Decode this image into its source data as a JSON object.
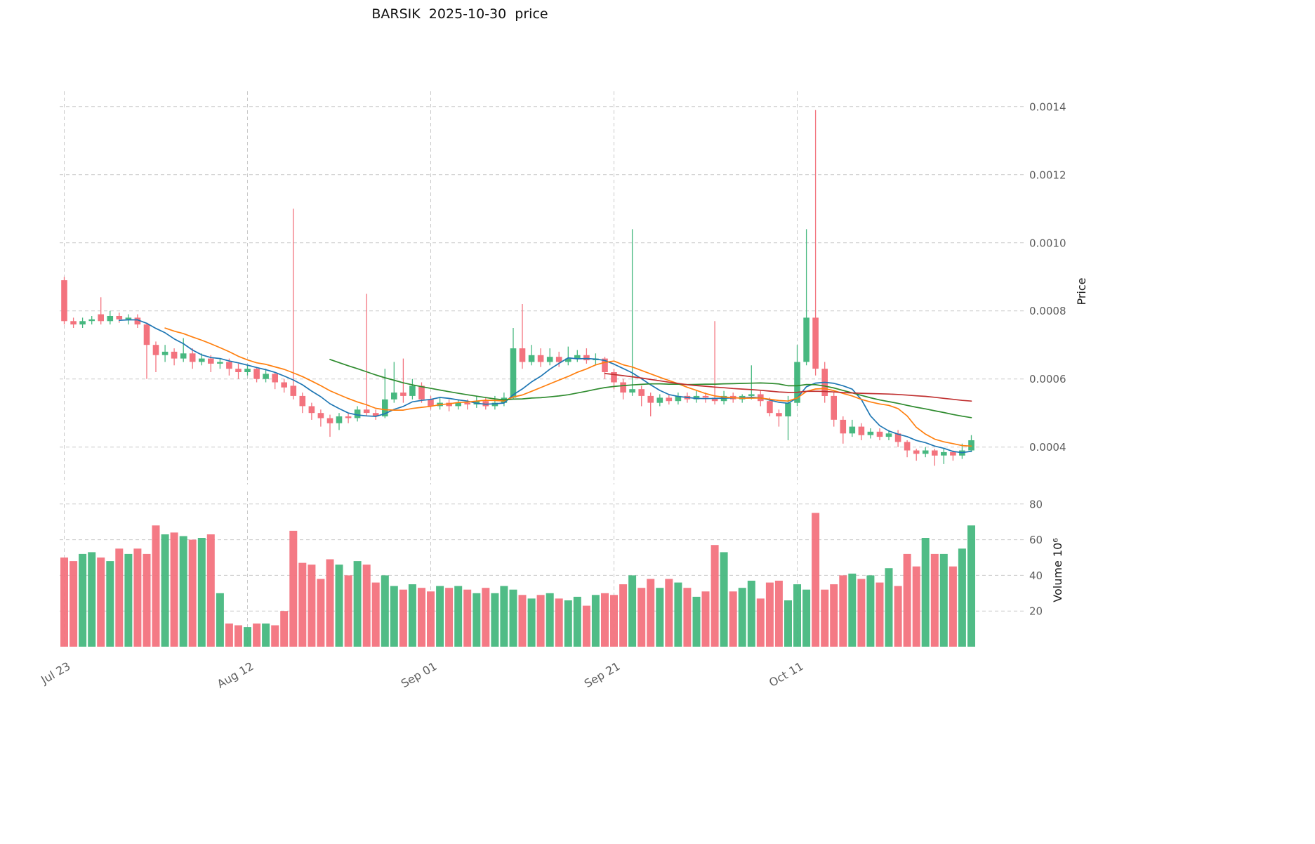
{
  "title": "BARSIK  2025-10-30  price",
  "chart_data": {
    "type": "candlestick",
    "title": "BARSIK  2025-10-30  price",
    "symbol": "BARSIK",
    "as_of_date": "2025-10-30",
    "grid": true,
    "legend": "none",
    "price_axis": {
      "label": "Price",
      "side": "right",
      "ticks": [
        0.0004,
        0.0006,
        0.0008,
        0.001,
        0.0012,
        0.0014
      ],
      "tick_labels": [
        "0.0004",
        "0.0006",
        "0.0008",
        "0.0010",
        "0.0012",
        "0.0014"
      ],
      "range": [
        0.00029,
        0.001445
      ]
    },
    "volume_axis": {
      "label": "Volume 10⁶",
      "side": "right",
      "unit": "millions",
      "ticks": [
        20,
        40,
        60,
        80
      ],
      "tick_labels": [
        "20",
        "40",
        "60",
        "80"
      ],
      "range": [
        0,
        87
      ]
    },
    "x_axis": {
      "tick_labels": [
        "Jul 23",
        "Aug 12",
        "Sep 01",
        "Sep 21",
        "Oct 11"
      ],
      "tick_indices": [
        0,
        20,
        40,
        60,
        80
      ],
      "tick_dates": [
        "2025-07-23",
        "2025-08-12",
        "2025-09-01",
        "2025-09-21",
        "2025-10-11"
      ]
    },
    "colors": {
      "up": "#47b880",
      "down": "#f3737e",
      "grid": "#c9c9c9"
    },
    "moving_averages": [
      {
        "name": "MA7",
        "window": 7,
        "color": "#1f77b4"
      },
      {
        "name": "MA12",
        "window": 12,
        "color": "#ff7f0e"
      },
      {
        "name": "MA30",
        "window": 30,
        "color": "#2e8b2e"
      },
      {
        "name": "MA60",
        "window": 60,
        "color": "#c03030"
      }
    ],
    "candles": {
      "columns": [
        "date",
        "open",
        "high",
        "low",
        "close",
        "volume_millions"
      ],
      "rows": [
        [
          "2025-07-23",
          0.00089,
          0.0009,
          0.00076,
          0.00077,
          50
        ],
        [
          "2025-07-24",
          0.00077,
          0.00078,
          0.00075,
          0.00076,
          48
        ],
        [
          "2025-07-25",
          0.00076,
          0.00078,
          0.00075,
          0.00077,
          52
        ],
        [
          "2025-07-26",
          0.00077,
          0.000785,
          0.00076,
          0.000775,
          53
        ],
        [
          "2025-07-27",
          0.00079,
          0.00084,
          0.00076,
          0.00077,
          50
        ],
        [
          "2025-07-28",
          0.00077,
          0.0008,
          0.00076,
          0.000785,
          48
        ],
        [
          "2025-07-29",
          0.000785,
          0.000795,
          0.000765,
          0.000775,
          55
        ],
        [
          "2025-07-30",
          0.000775,
          0.00079,
          0.00076,
          0.00078,
          52
        ],
        [
          "2025-07-31",
          0.00078,
          0.00079,
          0.00075,
          0.00076,
          55
        ],
        [
          "2025-08-01",
          0.00076,
          0.000765,
          0.0006,
          0.0007,
          52
        ],
        [
          "2025-08-02",
          0.0007,
          0.00071,
          0.00062,
          0.00067,
          68
        ],
        [
          "2025-08-03",
          0.00067,
          0.0007,
          0.00065,
          0.00068,
          63
        ],
        [
          "2025-08-04",
          0.00068,
          0.00069,
          0.00064,
          0.00066,
          64
        ],
        [
          "2025-08-05",
          0.00066,
          0.00072,
          0.00065,
          0.000675,
          62
        ],
        [
          "2025-08-06",
          0.000675,
          0.00069,
          0.00063,
          0.00065,
          60
        ],
        [
          "2025-08-07",
          0.00065,
          0.000675,
          0.00064,
          0.00066,
          61
        ],
        [
          "2025-08-08",
          0.00066,
          0.00067,
          0.00062,
          0.000645,
          63
        ],
        [
          "2025-08-09",
          0.000645,
          0.00066,
          0.00063,
          0.00065,
          30
        ],
        [
          "2025-08-10",
          0.00065,
          0.00066,
          0.00061,
          0.00063,
          13
        ],
        [
          "2025-08-11",
          0.00063,
          0.000645,
          0.0006,
          0.00062,
          12
        ],
        [
          "2025-08-12",
          0.00062,
          0.00064,
          0.00061,
          0.00063,
          11
        ],
        [
          "2025-08-13",
          0.00063,
          0.000635,
          0.00059,
          0.0006,
          13
        ],
        [
          "2025-08-14",
          0.0006,
          0.00063,
          0.00059,
          0.000615,
          13
        ],
        [
          "2025-08-15",
          0.000615,
          0.00062,
          0.00057,
          0.00059,
          12
        ],
        [
          "2025-08-16",
          0.00059,
          0.0006,
          0.00056,
          0.000575,
          20
        ],
        [
          "2025-08-17",
          0.00058,
          0.0011,
          0.00054,
          0.00055,
          65
        ],
        [
          "2025-08-18",
          0.00055,
          0.00056,
          0.0005,
          0.00052,
          47
        ],
        [
          "2025-08-19",
          0.00052,
          0.00053,
          0.00048,
          0.0005,
          46
        ],
        [
          "2025-08-20",
          0.0005,
          0.00051,
          0.00046,
          0.000485,
          38
        ],
        [
          "2025-08-21",
          0.000485,
          0.000495,
          0.00043,
          0.00047,
          49
        ],
        [
          "2025-08-22",
          0.00047,
          0.0005,
          0.00045,
          0.00049,
          46
        ],
        [
          "2025-08-23",
          0.00049,
          0.0005,
          0.00047,
          0.000485,
          40
        ],
        [
          "2025-08-24",
          0.000485,
          0.00052,
          0.000475,
          0.00051,
          48
        ],
        [
          "2025-08-25",
          0.00051,
          0.00085,
          0.00049,
          0.0005,
          46
        ],
        [
          "2025-08-26",
          0.0005,
          0.00051,
          0.00048,
          0.00049,
          36
        ],
        [
          "2025-08-27",
          0.00049,
          0.00063,
          0.000485,
          0.00054,
          40
        ],
        [
          "2025-08-28",
          0.00054,
          0.00065,
          0.00053,
          0.00056,
          34
        ],
        [
          "2025-08-29",
          0.00056,
          0.00066,
          0.00053,
          0.00055,
          32
        ],
        [
          "2025-08-30",
          0.00055,
          0.0006,
          0.00054,
          0.00058,
          35
        ],
        [
          "2025-08-31",
          0.00058,
          0.00059,
          0.00053,
          0.00054,
          33
        ],
        [
          "2025-09-01",
          0.00054,
          0.00055,
          0.00051,
          0.00052,
          31
        ],
        [
          "2025-09-02",
          0.00052,
          0.000545,
          0.00051,
          0.00053,
          34
        ],
        [
          "2025-09-03",
          0.00053,
          0.00054,
          0.000505,
          0.00052,
          33
        ],
        [
          "2025-09-04",
          0.00052,
          0.00054,
          0.00051,
          0.00053,
          34
        ],
        [
          "2025-09-05",
          0.00053,
          0.00054,
          0.00051,
          0.000525,
          32
        ],
        [
          "2025-09-06",
          0.000525,
          0.00055,
          0.000515,
          0.000535,
          30
        ],
        [
          "2025-09-07",
          0.000535,
          0.000545,
          0.00051,
          0.00052,
          33
        ],
        [
          "2025-09-08",
          0.00052,
          0.00055,
          0.00051,
          0.00053,
          30
        ],
        [
          "2025-09-09",
          0.00053,
          0.00056,
          0.00052,
          0.000545,
          34
        ],
        [
          "2025-09-10",
          0.000545,
          0.00075,
          0.00054,
          0.00069,
          32
        ],
        [
          "2025-09-11",
          0.00069,
          0.00082,
          0.00063,
          0.00065,
          29
        ],
        [
          "2025-09-12",
          0.00065,
          0.0007,
          0.00064,
          0.00067,
          27
        ],
        [
          "2025-09-13",
          0.00067,
          0.00069,
          0.000635,
          0.00065,
          29
        ],
        [
          "2025-09-14",
          0.00065,
          0.00069,
          0.00064,
          0.000665,
          30
        ],
        [
          "2025-09-15",
          0.000665,
          0.00068,
          0.000635,
          0.00065,
          27
        ],
        [
          "2025-09-16",
          0.00065,
          0.000695,
          0.00064,
          0.00066,
          26
        ],
        [
          "2025-09-17",
          0.00066,
          0.000685,
          0.00065,
          0.00067,
          28
        ],
        [
          "2025-09-18",
          0.00067,
          0.00069,
          0.000645,
          0.000655,
          23
        ],
        [
          "2025-09-19",
          0.000655,
          0.000675,
          0.00064,
          0.00066,
          29
        ],
        [
          "2025-09-20",
          0.00066,
          0.000665,
          0.0006,
          0.00062,
          30
        ],
        [
          "2025-09-21",
          0.00062,
          0.00063,
          0.00057,
          0.00059,
          29
        ],
        [
          "2025-09-22",
          0.00059,
          0.0006,
          0.00054,
          0.00056,
          35
        ],
        [
          "2025-09-23",
          0.00056,
          0.00104,
          0.00055,
          0.00057,
          40
        ],
        [
          "2025-09-24",
          0.00057,
          0.00058,
          0.00052,
          0.00055,
          33
        ],
        [
          "2025-09-25",
          0.00055,
          0.00056,
          0.00049,
          0.00053,
          38
        ],
        [
          "2025-09-26",
          0.00053,
          0.000555,
          0.00052,
          0.000545,
          33
        ],
        [
          "2025-09-27",
          0.000545,
          0.000555,
          0.000525,
          0.000535,
          38
        ],
        [
          "2025-09-28",
          0.000535,
          0.00056,
          0.000525,
          0.00055,
          36
        ],
        [
          "2025-09-29",
          0.00055,
          0.00056,
          0.00053,
          0.00054,
          33
        ],
        [
          "2025-09-30",
          0.00054,
          0.000565,
          0.00053,
          0.00055,
          28
        ],
        [
          "2025-10-01",
          0.00055,
          0.00056,
          0.00053,
          0.000545,
          31
        ],
        [
          "2025-10-02",
          0.000545,
          0.00077,
          0.000525,
          0.000535,
          57
        ],
        [
          "2025-10-03",
          0.000535,
          0.000565,
          0.000525,
          0.00055,
          53
        ],
        [
          "2025-10-04",
          0.00055,
          0.00056,
          0.00053,
          0.00054,
          31
        ],
        [
          "2025-10-05",
          0.00054,
          0.000555,
          0.00053,
          0.00055,
          33
        ],
        [
          "2025-10-06",
          0.00055,
          0.00064,
          0.00054,
          0.000555,
          37
        ],
        [
          "2025-10-07",
          0.000555,
          0.000565,
          0.00052,
          0.000535,
          27
        ],
        [
          "2025-10-08",
          0.000535,
          0.000545,
          0.00049,
          0.0005,
          36
        ],
        [
          "2025-10-09",
          0.0005,
          0.00051,
          0.00046,
          0.00049,
          37
        ],
        [
          "2025-10-10",
          0.00049,
          0.00055,
          0.00042,
          0.00053,
          26
        ],
        [
          "2025-10-11",
          0.00053,
          0.0007,
          0.00052,
          0.00065,
          35
        ],
        [
          "2025-10-12",
          0.00065,
          0.00104,
          0.00064,
          0.00078,
          32
        ],
        [
          "2025-10-13",
          0.00078,
          0.00139,
          0.00061,
          0.00063,
          75
        ],
        [
          "2025-10-14",
          0.00063,
          0.00065,
          0.00053,
          0.00055,
          32
        ],
        [
          "2025-10-15",
          0.00055,
          0.00056,
          0.00046,
          0.00048,
          35
        ],
        [
          "2025-10-16",
          0.00048,
          0.00049,
          0.00041,
          0.00044,
          40
        ],
        [
          "2025-10-17",
          0.00044,
          0.00048,
          0.00043,
          0.00046,
          41
        ],
        [
          "2025-10-18",
          0.00046,
          0.00047,
          0.00042,
          0.000435,
          38
        ],
        [
          "2025-10-19",
          0.000435,
          0.000455,
          0.000425,
          0.000445,
          40
        ],
        [
          "2025-10-20",
          0.000445,
          0.000455,
          0.00042,
          0.00043,
          36
        ],
        [
          "2025-10-21",
          0.00043,
          0.00045,
          0.00042,
          0.00044,
          44
        ],
        [
          "2025-10-22",
          0.00044,
          0.00045,
          0.0004,
          0.000415,
          34
        ],
        [
          "2025-10-23",
          0.000415,
          0.00042,
          0.00037,
          0.00039,
          52
        ],
        [
          "2025-10-24",
          0.00039,
          0.000395,
          0.00036,
          0.00038,
          45
        ],
        [
          "2025-10-25",
          0.00038,
          0.0004,
          0.00037,
          0.00039,
          61
        ],
        [
          "2025-10-26",
          0.00039,
          0.000395,
          0.000345,
          0.000375,
          52
        ],
        [
          "2025-10-27",
          0.000375,
          0.000395,
          0.00035,
          0.000385,
          52
        ],
        [
          "2025-10-28",
          0.000385,
          0.00039,
          0.00036,
          0.000375,
          45
        ],
        [
          "2025-10-29",
          0.000375,
          0.00041,
          0.000365,
          0.00039,
          55
        ],
        [
          "2025-10-30",
          0.00039,
          0.000435,
          0.000385,
          0.00042,
          68
        ]
      ]
    }
  }
}
